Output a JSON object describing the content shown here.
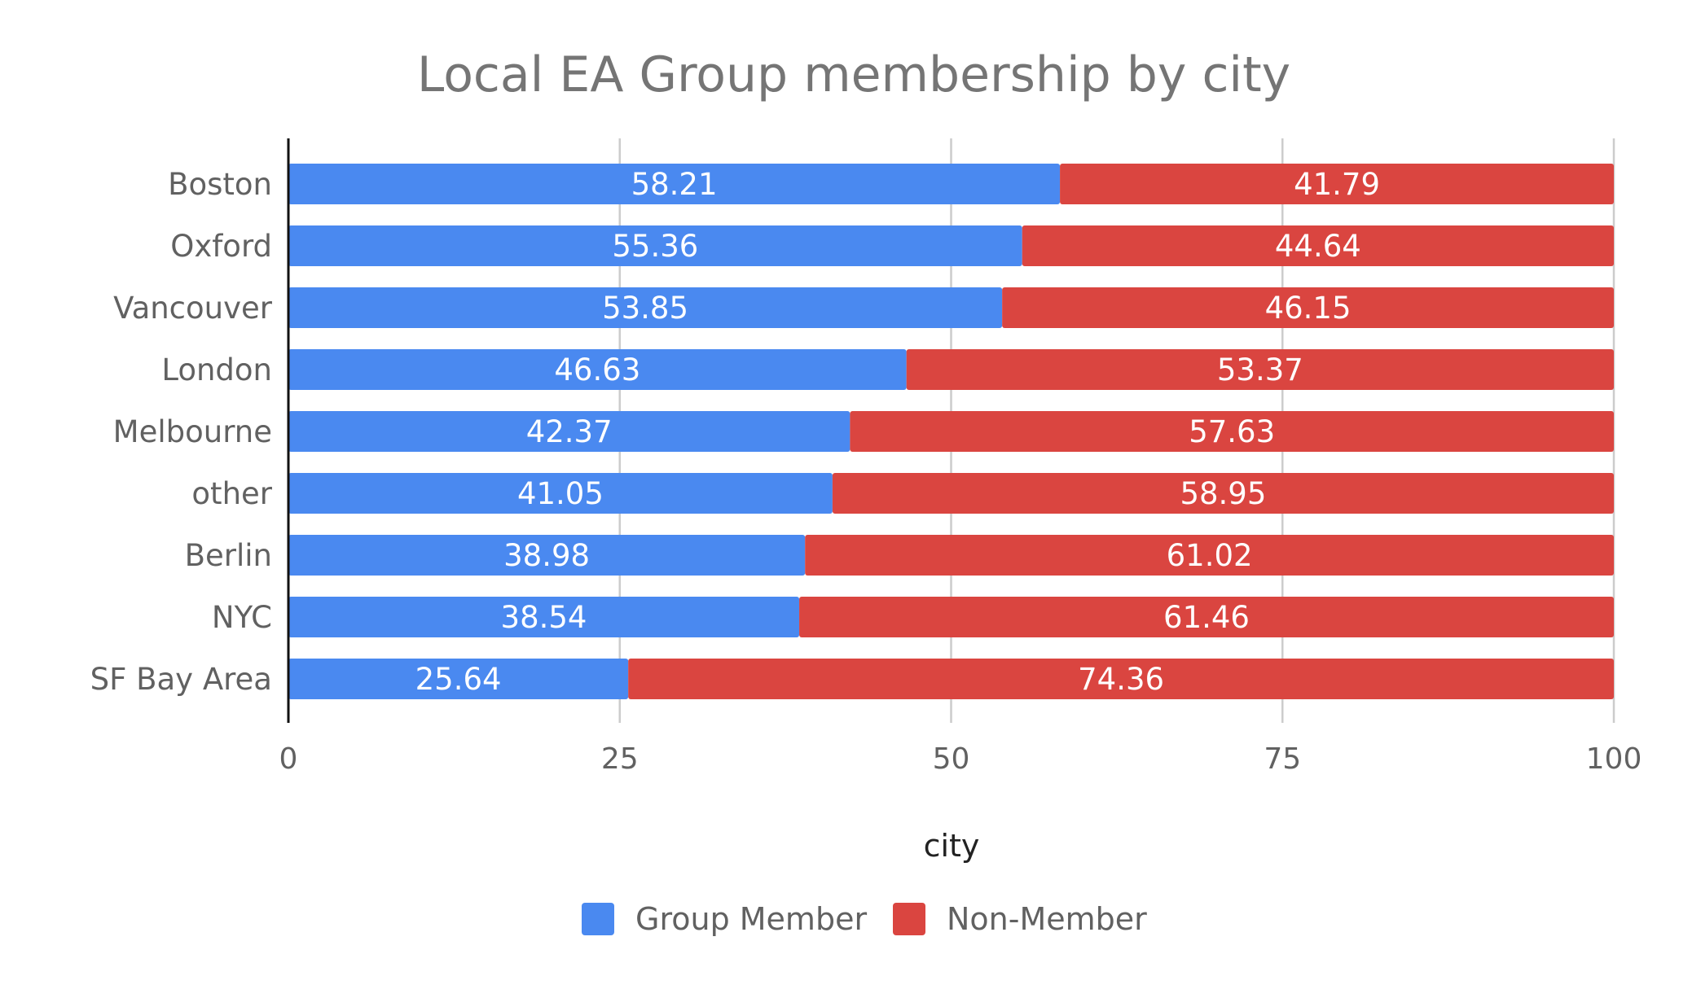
{
  "chart_data": {
    "type": "bar",
    "orientation": "horizontal",
    "stacked": true,
    "title": "Local EA Group membership by city",
    "xlabel": "city",
    "ylabel": "",
    "xlim": [
      0,
      100
    ],
    "x_ticks": [
      0,
      25,
      50,
      75,
      100
    ],
    "grid": true,
    "legend_position": "bottom",
    "categories": [
      "Boston",
      "Oxford",
      "Vancouver",
      "London",
      "Melbourne",
      "other",
      "Berlin",
      "NYC",
      "SF Bay Area"
    ],
    "series": [
      {
        "name": "Group Member",
        "color": "#4a89f0",
        "values": [
          58.21,
          55.36,
          53.85,
          46.63,
          42.37,
          41.05,
          38.98,
          38.54,
          25.64
        ]
      },
      {
        "name": "Non-Member",
        "color": "#da4540",
        "values": [
          41.79,
          44.64,
          46.15,
          53.37,
          57.63,
          58.95,
          61.02,
          61.46,
          74.36
        ]
      }
    ]
  }
}
